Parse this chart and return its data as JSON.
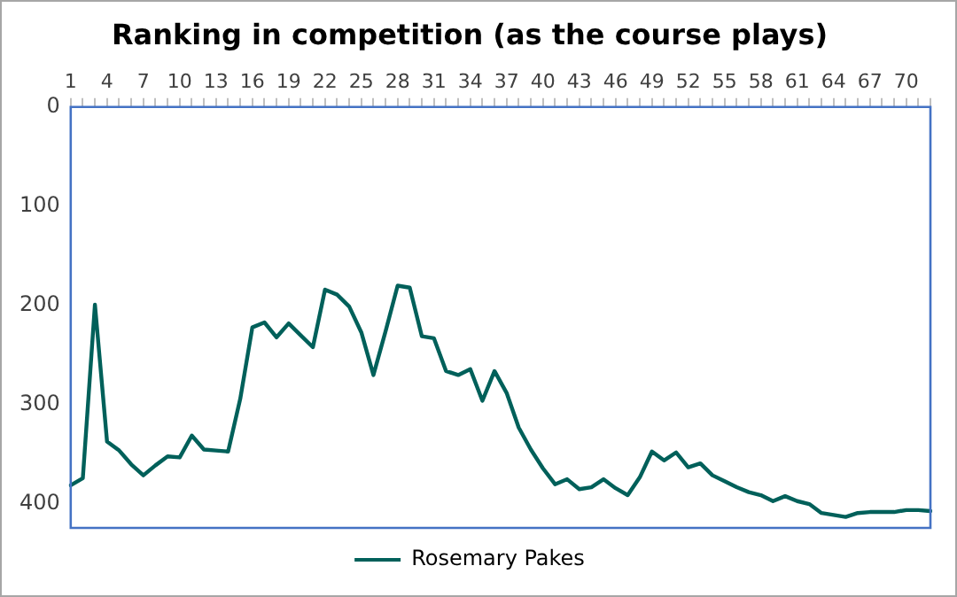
{
  "chart_data": {
    "type": "line",
    "title": "Ranking in competition (as the course plays)",
    "categories": [
      "1",
      null,
      null,
      "4",
      null,
      null,
      "7",
      null,
      null,
      "10",
      null,
      null,
      "13",
      null,
      null,
      "16",
      null,
      null,
      "19",
      null,
      null,
      "22",
      null,
      null,
      "25",
      null,
      null,
      "28",
      null,
      null,
      "31",
      null,
      null,
      "34",
      null,
      null,
      "37",
      null,
      null,
      "40",
      null,
      null,
      "43",
      null,
      null,
      "46",
      null,
      null,
      "49",
      null,
      null,
      "52",
      null,
      null,
      "55",
      null,
      null,
      "58",
      null,
      null,
      "61",
      null,
      null,
      "64",
      null,
      null,
      "67",
      null,
      null,
      "70",
      null,
      null
    ],
    "series": [
      {
        "name": "Rosemary Pakes",
        "color": "#00605a",
        "values": [
          381,
          374,
          199,
          337,
          346,
          360,
          371,
          361,
          352,
          353,
          331,
          345,
          346,
          347,
          294,
          222,
          217,
          232,
          218,
          230,
          242,
          184,
          189,
          201,
          227,
          270,
          226,
          180,
          182,
          231,
          233,
          266,
          270,
          264,
          296,
          266,
          288,
          323,
          345,
          364,
          380,
          375,
          385,
          383,
          375,
          384,
          391,
          373,
          347,
          356,
          348,
          363,
          359,
          371,
          377,
          383,
          388,
          391,
          397,
          392,
          397,
          400,
          409,
          411,
          413,
          409,
          408,
          408,
          408,
          406,
          406,
          407
        ]
      }
    ],
    "ylim": [
      424,
      0
    ],
    "yticks": [
      0,
      100,
      200,
      300,
      400
    ],
    "grid": false,
    "legend": "bottom",
    "marker": "none",
    "line_style": "solid"
  }
}
